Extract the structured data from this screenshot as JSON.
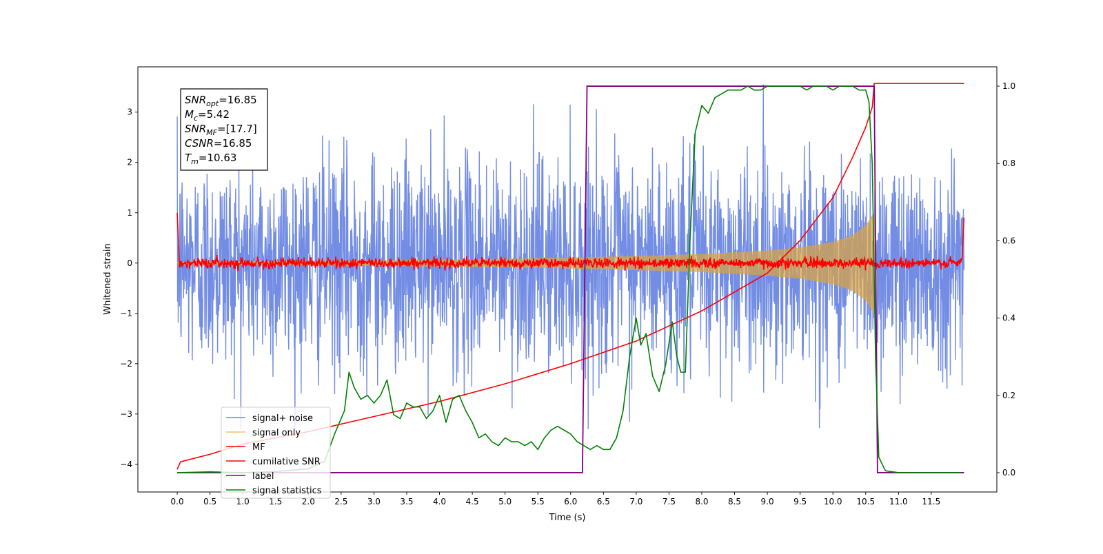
{
  "chart_data": {
    "type": "line",
    "xlabel": "Time (s)",
    "ylabel": "Whitened strain",
    "xlim": [
      -0.6,
      12.5
    ],
    "ylim": [
      -4.55,
      3.9
    ],
    "y2lim": [
      -0.05,
      1.05
    ],
    "x_ticks": [
      0.0,
      0.5,
      1.0,
      1.5,
      2.0,
      2.5,
      3.0,
      3.5,
      4.0,
      4.5,
      5.0,
      5.5,
      6.0,
      6.5,
      7.0,
      7.5,
      8.0,
      8.5,
      9.0,
      9.5,
      10.0,
      10.5,
      11.0,
      11.5
    ],
    "x_tick_labels": [
      "0.0",
      "0.5",
      "1.0",
      "1.5",
      "2.0",
      "2.5",
      "3.0",
      "3.5",
      "4.0",
      "4.5",
      "5.0",
      "5.5",
      "6.0",
      "6.5",
      "7.0",
      "7.5",
      "8.0",
      "8.5",
      "9.0",
      "9.5",
      "10.0",
      "10.5",
      "11.0",
      "11.5"
    ],
    "y_ticks": [
      -4,
      -3,
      -2,
      -1,
      0,
      1,
      2,
      3
    ],
    "y_tick_labels": [
      "−4",
      "−3",
      "−2",
      "−1",
      "0",
      "1",
      "2",
      "3"
    ],
    "y2_ticks": [
      0.0,
      0.2,
      0.4,
      0.6,
      0.8,
      1.0
    ],
    "y2_tick_labels": [
      "0.0",
      "0.2",
      "0.4",
      "0.6",
      "0.8",
      "1.0"
    ],
    "grid": false,
    "legend_position": "lower-left",
    "annotation": {
      "lines": [
        {
          "main": "SNR",
          "sub": "opt",
          "rest": "=16.85"
        },
        {
          "main": "M",
          "sub": "c",
          "rest": "=5.42"
        },
        {
          "main": "SNR",
          "sub": "MF",
          "rest": "=[17.7]"
        },
        {
          "main": "CSNR",
          "sub": "",
          "rest": "=16.85"
        },
        {
          "main": "T",
          "sub": "m",
          "rest": "=10.63"
        }
      ]
    },
    "series": [
      {
        "name": "signal+ noise",
        "axis": "left",
        "color": "#6b87e3",
        "kind": "noise",
        "x_range": [
          0.0,
          12.0
        ],
        "amplitude_std": 1.05,
        "extremes": [
          -3.3,
          3.55
        ]
      },
      {
        "name": "signal only",
        "axis": "left",
        "color": "#f5c16a",
        "kind": "chirp_envelope",
        "x": [
          0.0,
          1.0,
          2.0,
          3.0,
          4.0,
          5.0,
          6.0,
          7.0,
          8.0,
          9.0,
          9.5,
          10.0,
          10.3,
          10.5,
          10.6,
          10.63,
          10.65
        ],
        "y_upper": [
          0.03,
          0.035,
          0.045,
          0.055,
          0.07,
          0.085,
          0.11,
          0.14,
          0.18,
          0.25,
          0.31,
          0.42,
          0.55,
          0.75,
          0.95,
          1.0,
          0.0
        ]
      },
      {
        "name": "MF",
        "axis": "left",
        "color": "#ff0000",
        "kind": "noisy_flat",
        "x_range": [
          0.0,
          12.0
        ],
        "baseline": 0.0,
        "noise_std": 0.05,
        "edge_points": [
          [
            0.0,
            1.0
          ],
          [
            0.03,
            0.1
          ],
          [
            11.97,
            0.1
          ],
          [
            12.0,
            0.9
          ]
        ]
      },
      {
        "name": "cumilative SNR",
        "axis": "left",
        "color": "#ff0000",
        "x": [
          0.0,
          0.05,
          0.5,
          1.0,
          2.0,
          3.0,
          4.0,
          5.0,
          6.0,
          7.0,
          8.0,
          9.0,
          9.5,
          10.0,
          10.3,
          10.5,
          10.6,
          10.63,
          12.0
        ],
        "y": [
          -4.1,
          -3.95,
          -3.8,
          -3.6,
          -3.35,
          -3.05,
          -2.75,
          -2.4,
          -2.0,
          -1.55,
          -0.95,
          -0.2,
          0.45,
          1.3,
          2.1,
          2.7,
          3.1,
          3.57,
          3.57
        ]
      },
      {
        "name": "label",
        "axis": "right",
        "color": "#800080",
        "x": [
          0.0,
          6.18,
          6.25,
          10.63,
          10.68,
          11.0,
          11.5,
          12.0
        ],
        "y": [
          0.0,
          0.0,
          1.0,
          1.0,
          0.0,
          0.0,
          0.0,
          0.0
        ]
      },
      {
        "name": "signal statistics",
        "axis": "right",
        "color": "#008000",
        "x": [
          0.0,
          0.5,
          1.0,
          1.5,
          2.0,
          2.25,
          2.4,
          2.55,
          2.62,
          2.7,
          2.8,
          2.9,
          3.0,
          3.1,
          3.2,
          3.3,
          3.4,
          3.5,
          3.6,
          3.7,
          3.8,
          3.9,
          4.0,
          4.1,
          4.2,
          4.3,
          4.4,
          4.5,
          4.6,
          4.7,
          4.8,
          4.9,
          5.0,
          5.1,
          5.2,
          5.3,
          5.4,
          5.5,
          5.6,
          5.7,
          5.8,
          5.9,
          6.0,
          6.1,
          6.2,
          6.3,
          6.4,
          6.5,
          6.6,
          6.7,
          6.8,
          6.9,
          7.0,
          7.07,
          7.15,
          7.25,
          7.35,
          7.45,
          7.55,
          7.62,
          7.68,
          7.75,
          7.82,
          7.9,
          8.0,
          8.1,
          8.2,
          8.3,
          8.4,
          8.5,
          8.6,
          8.7,
          8.8,
          8.9,
          9.0,
          9.1,
          9.2,
          9.3,
          9.4,
          9.5,
          9.6,
          9.7,
          9.8,
          9.9,
          10.0,
          10.1,
          10.2,
          10.3,
          10.4,
          10.5,
          10.55,
          10.6,
          10.65,
          10.7,
          10.8,
          11.0,
          11.5,
          11.95
        ],
        "y": [
          0.0,
          0.002,
          0.0,
          0.003,
          0.01,
          0.03,
          0.1,
          0.16,
          0.26,
          0.22,
          0.19,
          0.2,
          0.18,
          0.2,
          0.24,
          0.15,
          0.14,
          0.18,
          0.17,
          0.17,
          0.14,
          0.16,
          0.2,
          0.13,
          0.19,
          0.2,
          0.16,
          0.13,
          0.09,
          0.1,
          0.08,
          0.07,
          0.09,
          0.08,
          0.08,
          0.07,
          0.08,
          0.06,
          0.09,
          0.11,
          0.12,
          0.11,
          0.1,
          0.08,
          0.07,
          0.06,
          0.07,
          0.06,
          0.06,
          0.09,
          0.16,
          0.3,
          0.4,
          0.33,
          0.36,
          0.25,
          0.21,
          0.28,
          0.39,
          0.3,
          0.26,
          0.26,
          0.6,
          0.88,
          0.95,
          0.93,
          0.97,
          0.98,
          0.99,
          0.99,
          0.99,
          1.0,
          0.99,
          0.99,
          1.0,
          1.0,
          1.0,
          1.0,
          1.0,
          1.0,
          0.99,
          1.0,
          1.0,
          1.0,
          0.99,
          1.0,
          1.0,
          1.0,
          0.99,
          0.99,
          0.96,
          0.8,
          0.3,
          0.04,
          0.005,
          0.0,
          0.0,
          0.0
        ]
      }
    ]
  }
}
